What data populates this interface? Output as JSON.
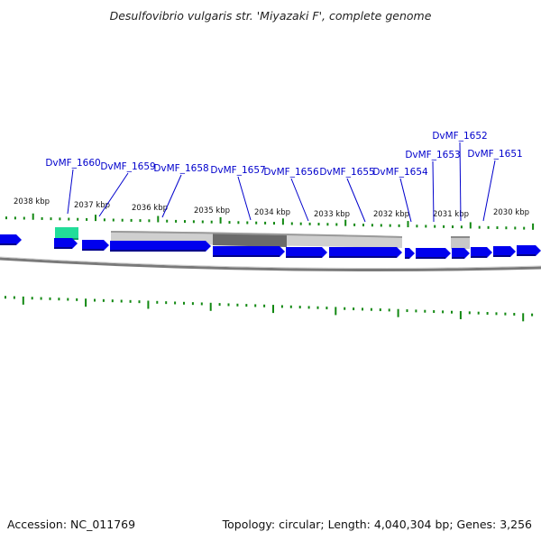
{
  "title": "Desulfovibrio vulgaris str. 'Miyazaki F', complete genome",
  "footer": {
    "accession": "Accession: NC_011769",
    "summary": "Topology: circular; Length: 4,040,304 bp; Genes: 3,256"
  },
  "colors": {
    "gene": "#0000ee",
    "highlight_gene": "#22dd99",
    "tick": "#118811",
    "label": "#0000cc",
    "backbone": "#888888",
    "feature_light": "#c8c8c8",
    "feature_dark": "#6e6e6e"
  },
  "kbp_labels": [
    "2038 kbp",
    "2037 kbp",
    "2036 kbp",
    "2035 kbp",
    "2034 kbp",
    "2033 kbp",
    "2032 kbp",
    "2031 kbp",
    "2030 kbp"
  ],
  "gene_labels": [
    "DvMF_1660",
    "DvMF_1659",
    "DvMF_1658",
    "DvMF_1657",
    "DvMF_1656",
    "DvMF_1655",
    "DvMF_1654",
    "DvMF_1653",
    "DvMF_1652",
    "DvMF_1651"
  ]
}
